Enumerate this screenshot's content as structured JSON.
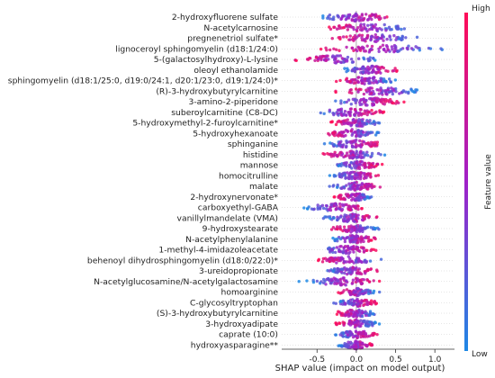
{
  "chart_data": {
    "type": "scatter",
    "subtype": "shap-summary-beeswarm",
    "xlabel": "SHAP value (impact on model output)",
    "ylabel": "",
    "xlim": [
      -0.95,
      1.25
    ],
    "x_ticks": [
      {
        "value": -0.5,
        "label": "-0.5"
      },
      {
        "value": 0.0,
        "label": "0.0"
      },
      {
        "value": 0.5,
        "label": "0.5"
      },
      {
        "value": 1.0,
        "label": "1.0"
      }
    ],
    "zero_line": true,
    "colorbar": {
      "label": "Feature value",
      "high_label": "High",
      "low_label": "Low",
      "low_color": "#1e88e5",
      "high_color": "#ff0d57"
    },
    "features": [
      {
        "name": "2-hydroxyfluorene sulfate",
        "min": -0.55,
        "max": 0.55,
        "high_side": "right"
      },
      {
        "name": "N-acetylcarnosine",
        "min": -0.45,
        "max": 0.75,
        "high_side": "left"
      },
      {
        "name": "pregnenetriol sulfate*",
        "min": -0.35,
        "max": 0.8,
        "high_side": "left"
      },
      {
        "name": "lignoceroyl sphingomyelin (d18:1/24:0)",
        "min": -0.5,
        "max": 1.15,
        "high_side": "left"
      },
      {
        "name": "5-(galactosylhydroxy)-L-lysine",
        "min": -0.9,
        "max": 0.35,
        "high_side": "left"
      },
      {
        "name": "oleoyl ethanolamide",
        "min": -0.25,
        "max": 0.6,
        "high_side": "right"
      },
      {
        "name": "sphingomyelin (d18:1/25:0, d19:0/24:1, d20:1/23:0, d19:1/24:0)*",
        "min": -0.3,
        "max": 0.55,
        "high_side": "left"
      },
      {
        "name": "(R)-3-hydroxybutyrylcarnitine",
        "min": -0.3,
        "max": 0.9,
        "high_side": "left"
      },
      {
        "name": "3-amino-2-piperidone",
        "min": -0.3,
        "max": 0.65,
        "high_side": "right"
      },
      {
        "name": "suberoylcarnitine (C8-DC)",
        "min": -0.55,
        "max": 0.4,
        "high_side": "right"
      },
      {
        "name": "5-hydroxymethyl-2-furoylcarnitine*",
        "min": -0.35,
        "max": 0.35,
        "high_side": "left"
      },
      {
        "name": "5-hydroxyhexanoate",
        "min": -0.45,
        "max": 0.35,
        "high_side": "left"
      },
      {
        "name": "sphinganine",
        "min": -0.45,
        "max": 0.4,
        "high_side": "right"
      },
      {
        "name": "histidine",
        "min": -0.45,
        "max": 0.4,
        "high_side": "left"
      },
      {
        "name": "mannose",
        "min": -0.3,
        "max": 0.35,
        "high_side": "right"
      },
      {
        "name": "homocitrulline",
        "min": -0.35,
        "max": 0.3,
        "high_side": "right"
      },
      {
        "name": "malate",
        "min": -0.35,
        "max": 0.35,
        "high_side": "right"
      },
      {
        "name": "2-hydroxynervonate*",
        "min": -0.3,
        "max": 0.25,
        "high_side": "left"
      },
      {
        "name": "carboxyethyl-GABA",
        "min": -0.7,
        "max": 0.2,
        "high_side": "right"
      },
      {
        "name": "vanillylmandelate (VMA)",
        "min": -0.45,
        "max": 0.35,
        "high_side": "right"
      },
      {
        "name": "9-hydroxystearate",
        "min": -0.35,
        "max": 0.3,
        "high_side": "left"
      },
      {
        "name": "N-acetylphenylalanine",
        "min": -0.35,
        "max": 0.3,
        "high_side": "right"
      },
      {
        "name": "1-methyl-4-imidazoleacetate",
        "min": -0.55,
        "max": 0.3,
        "high_side": "right"
      },
      {
        "name": "behenoyl dihydrosphingomyelin (d18:0/22:0)*",
        "min": -0.55,
        "max": 0.35,
        "high_side": "left"
      },
      {
        "name": "3-ureidopropionate",
        "min": -0.45,
        "max": 0.35,
        "high_side": "right"
      },
      {
        "name": "N-acetylglucosamine/N-acetylgalactosamine",
        "min": -0.75,
        "max": 0.4,
        "high_side": "right"
      },
      {
        "name": "homoarginine",
        "min": -0.3,
        "max": 0.3,
        "high_side": "left"
      },
      {
        "name": "C-glycosyltryptophan",
        "min": -0.3,
        "max": 0.3,
        "high_side": "right"
      },
      {
        "name": "(S)-3-hydroxybutyrylcarnitine",
        "min": -0.3,
        "max": 0.3,
        "high_side": "left"
      },
      {
        "name": "3-hydroxyadipate",
        "min": -0.3,
        "max": 0.3,
        "high_side": "left"
      },
      {
        "name": "caprate (10:0)",
        "min": -0.3,
        "max": 0.3,
        "high_side": "right"
      },
      {
        "name": "hydroxyasparagine**",
        "min": -0.25,
        "max": 0.25,
        "high_side": "right"
      }
    ]
  }
}
